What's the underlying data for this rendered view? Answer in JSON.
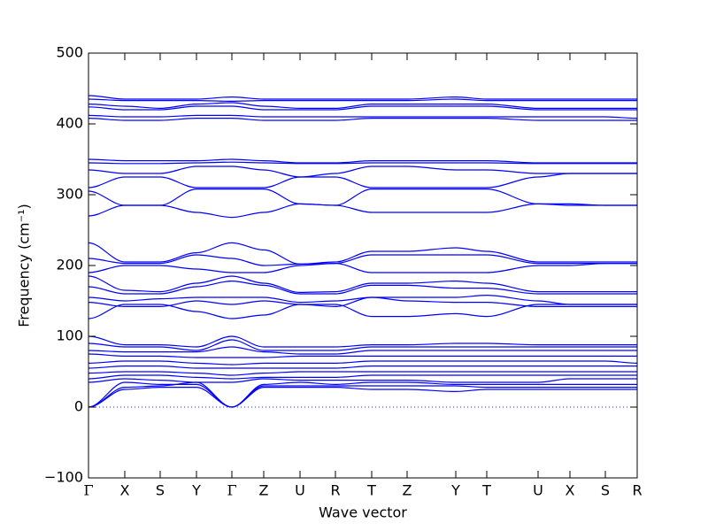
{
  "chart_data": {
    "type": "line",
    "xlabel": "Wave vector",
    "ylabel": "Frequency (cm⁻¹)",
    "color": "#0000ff",
    "x": [
      0,
      41,
      81,
      122,
      162,
      198,
      239,
      279,
      320,
      360,
      415,
      450,
      508,
      544,
      584,
      620
    ],
    "xlim": [
      0,
      620
    ],
    "xticks": [
      {
        "value": 0,
        "label": "Γ"
      },
      {
        "value": 41,
        "label": "X"
      },
      {
        "value": 81,
        "label": "S"
      },
      {
        "value": 122,
        "label": "Y"
      },
      {
        "value": 162,
        "label": "Γ"
      },
      {
        "value": 198,
        "label": "Z"
      },
      {
        "value": 239,
        "label": "U"
      },
      {
        "value": 279,
        "label": "R"
      },
      {
        "value": 320,
        "label": "T"
      },
      {
        "value": 360,
        "label": "Z"
      },
      {
        "value": 415,
        "label": "Y"
      },
      {
        "value": 450,
        "label": "T"
      },
      {
        "value": 508,
        "label": "U"
      },
      {
        "value": 544,
        "label": "X"
      },
      {
        "value": 584,
        "label": "S"
      },
      {
        "value": 620,
        "label": "R"
      }
    ],
    "ylim": [
      -100,
      500
    ],
    "yticks": [
      {
        "value": -100,
        "label": "−100"
      },
      0,
      100,
      200,
      300,
      400,
      500
    ],
    "series": [
      {
        "values": [
          440,
          435,
          435,
          435,
          438,
          435,
          435,
          435,
          435,
          435,
          438,
          435,
          435,
          435,
          435,
          435
        ]
      },
      {
        "values": [
          435,
          433,
          433,
          433,
          432,
          433,
          433,
          433,
          433,
          433,
          435,
          433,
          433,
          433,
          433,
          433
        ]
      },
      {
        "values": [
          428,
          425,
          422,
          428,
          430,
          425,
          422,
          422,
          428,
          428,
          428,
          428,
          422,
          422,
          422,
          422
        ]
      },
      {
        "values": [
          424,
          420,
          420,
          425,
          425,
          420,
          420,
          420,
          425,
          425,
          425,
          425,
          420,
          420,
          420,
          420
        ]
      },
      {
        "values": [
          412,
          410,
          410,
          412,
          412,
          410,
          410,
          410,
          410,
          410,
          410,
          410,
          410,
          410,
          410,
          408
        ]
      },
      {
        "values": [
          408,
          405,
          405,
          408,
          408,
          405,
          405,
          405,
          408,
          408,
          408,
          408,
          405,
          405,
          405,
          405
        ]
      },
      {
        "values": [
          350,
          348,
          348,
          348,
          350,
          348,
          345,
          345,
          348,
          348,
          348,
          348,
          345,
          345,
          345,
          345
        ]
      },
      {
        "values": [
          345,
          344,
          344,
          345,
          346,
          345,
          344,
          344,
          345,
          345,
          345,
          345,
          344,
          344,
          344,
          344
        ]
      },
      {
        "values": [
          335,
          330,
          330,
          340,
          340,
          335,
          325,
          330,
          340,
          340,
          335,
          335,
          330,
          330,
          330,
          330
        ]
      },
      {
        "values": [
          310,
          325,
          325,
          310,
          310,
          310,
          325,
          325,
          310,
          310,
          310,
          310,
          325,
          330,
          330,
          330
        ]
      },
      {
        "values": [
          305,
          285,
          285,
          308,
          308,
          308,
          287,
          285,
          308,
          308,
          308,
          308,
          287,
          285,
          285,
          285
        ]
      },
      {
        "values": [
          270,
          285,
          285,
          275,
          268,
          275,
          287,
          285,
          275,
          275,
          275,
          275,
          287,
          287,
          285,
          285
        ]
      },
      {
        "values": [
          232,
          205,
          205,
          218,
          232,
          222,
          202,
          205,
          220,
          220,
          225,
          220,
          205,
          205,
          205,
          205
        ]
      },
      {
        "values": [
          210,
          203,
          203,
          215,
          210,
          200,
          202,
          203,
          215,
          215,
          215,
          215,
          203,
          203,
          203,
          203
        ]
      },
      {
        "values": [
          190,
          200,
          200,
          195,
          190,
          190,
          200,
          203,
          190,
          190,
          190,
          190,
          200,
          200,
          203,
          203
        ]
      },
      {
        "values": [
          185,
          165,
          163,
          175,
          185,
          175,
          162,
          163,
          175,
          175,
          178,
          175,
          163,
          163,
          163,
          163
        ]
      },
      {
        "values": [
          170,
          160,
          160,
          170,
          178,
          172,
          160,
          160,
          172,
          172,
          168,
          168,
          160,
          160,
          160,
          160
        ]
      },
      {
        "values": [
          155,
          150,
          153,
          155,
          155,
          155,
          148,
          150,
          155,
          155,
          155,
          158,
          150,
          145,
          145,
          145
        ]
      },
      {
        "values": [
          148,
          142,
          142,
          150,
          145,
          150,
          145,
          142,
          155,
          150,
          148,
          148,
          142,
          142,
          142,
          142
        ]
      },
      {
        "values": [
          125,
          145,
          145,
          135,
          125,
          130,
          145,
          145,
          128,
          128,
          132,
          128,
          145,
          145,
          145,
          145
        ]
      },
      {
        "values": [
          100,
          88,
          88,
          85,
          100,
          85,
          85,
          85,
          88,
          88,
          90,
          90,
          88,
          88,
          88,
          88
        ]
      },
      {
        "values": [
          90,
          85,
          85,
          80,
          95,
          80,
          80,
          80,
          85,
          85,
          85,
          85,
          85,
          85,
          85,
          85
        ]
      },
      {
        "values": [
          80,
          78,
          78,
          78,
          85,
          78,
          75,
          75,
          80,
          80,
          80,
          80,
          80,
          80,
          80,
          80
        ]
      },
      {
        "values": [
          75,
          72,
          72,
          70,
          70,
          70,
          72,
          72,
          72,
          72,
          72,
          72,
          72,
          72,
          72,
          72
        ]
      },
      {
        "values": [
          62,
          65,
          65,
          62,
          60,
          62,
          62,
          62,
          65,
          65,
          65,
          65,
          65,
          65,
          65,
          62
        ]
      },
      {
        "values": [
          55,
          58,
          58,
          55,
          55,
          55,
          55,
          55,
          58,
          58,
          58,
          58,
          58,
          58,
          58,
          58
        ]
      },
      {
        "values": [
          48,
          50,
          50,
          48,
          45,
          48,
          50,
          50,
          50,
          50,
          50,
          50,
          50,
          50,
          50,
          50
        ]
      },
      {
        "values": [
          40,
          45,
          45,
          42,
          40,
          42,
          42,
          42,
          45,
          45,
          45,
          45,
          45,
          45,
          45,
          45
        ]
      },
      {
        "values": [
          35,
          40,
          38,
          35,
          35,
          40,
          38,
          38,
          38,
          38,
          35,
          35,
          35,
          40,
          40,
          40
        ]
      },
      {
        "values": [
          0,
          28,
          30,
          35,
          0,
          30,
          30,
          30,
          30,
          30,
          30,
          28,
          28,
          28,
          28,
          28
        ]
      },
      {
        "values": [
          0,
          25,
          28,
          28,
          0,
          28,
          28,
          28,
          25,
          25,
          22,
          25,
          25,
          25,
          25,
          25
        ]
      },
      {
        "values": [
          0,
          35,
          32,
          32,
          0,
          32,
          35,
          32,
          35,
          35,
          32,
          32,
          32,
          32,
          32,
          32
        ]
      }
    ]
  }
}
